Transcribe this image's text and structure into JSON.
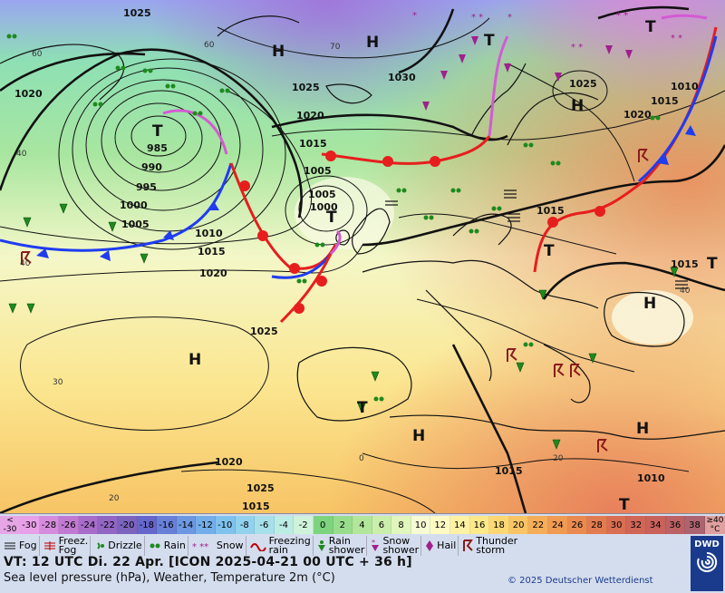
{
  "map": {
    "pressure_labels": [
      "1025",
      "1020",
      "1015",
      "1010",
      "1005",
      "1000",
      "995",
      "990",
      "985",
      "1030",
      "1025",
      "1020",
      "1015",
      "1010",
      "1005",
      "1000",
      "1015",
      "1020",
      "1025",
      "1025",
      "1020",
      "1015",
      "1010",
      "1020",
      "1015",
      "1015",
      "1010",
      "1015",
      "1025",
      "1020",
      "1015"
    ],
    "centers": [
      "T",
      "H",
      "H",
      "T",
      "T",
      "T",
      "H",
      "H",
      "T",
      "H",
      "H",
      "H",
      "T",
      "T",
      "T"
    ],
    "extra_labels": [
      "30",
      "20",
      "50",
      "60",
      "60",
      "70",
      "40",
      "40",
      "0",
      "20",
      "40",
      "20"
    ]
  },
  "legend": {
    "scale_min": "< -30",
    "scale_max": "≥40 °C",
    "temps": [
      "-30",
      "-28",
      "-26",
      "-24",
      "-22",
      "-20",
      "-18",
      "-16",
      "-14",
      "-12",
      "-10",
      "-8",
      "-6",
      "-4",
      "-2",
      "0",
      "2",
      "4",
      "6",
      "8",
      "10",
      "12",
      "14",
      "16",
      "18",
      "20",
      "22",
      "24",
      "26",
      "28",
      "30",
      "32",
      "34",
      "36",
      "38"
    ],
    "temp_colors": [
      "#e8a0e8",
      "#d58cdc",
      "#c07ad2",
      "#a86ccb",
      "#9266c4",
      "#7b63be",
      "#6666cc",
      "#6880d8",
      "#6c98e2",
      "#74aeea",
      "#80c2ee",
      "#92d2ee",
      "#a8e0ea",
      "#bcece4",
      "#cff2da",
      "#7ed47e",
      "#98dd8c",
      "#b2e69a",
      "#caefaa",
      "#e0f6bc",
      "#f6fbd4",
      "#fdfac4",
      "#fdf2a4",
      "#fde88a",
      "#fcd874",
      "#f9c564",
      "#f5ad58",
      "#f09a52",
      "#ea8a50",
      "#e27c50",
      "#d96e52",
      "#d06656",
      "#c8625a",
      "#bc6264",
      "#ac6470"
    ],
    "weather": [
      {
        "icon": "fog-icon",
        "label": "Fog"
      },
      {
        "icon": "freezing-fog-icon",
        "label": "Freez.\nFog"
      },
      {
        "icon": "drizzle-icon",
        "label": "Drizzle"
      },
      {
        "icon": "rain-icon",
        "label": "Rain"
      },
      {
        "icon": "snow-icon",
        "label": "Snow"
      },
      {
        "icon": "freezing-rain-icon",
        "label": "Freezing\nrain"
      },
      {
        "icon": "rain-shower-icon",
        "label": "Rain\nshower"
      },
      {
        "icon": "snow-shower-icon",
        "label": "Snow\nshower"
      },
      {
        "icon": "hail-icon",
        "label": "Hail"
      },
      {
        "icon": "thunderstorm-icon",
        "label": "Thunder\nstorm"
      }
    ],
    "valid_time": "VT: 12 UTC Di.  22 Apr. [ICON 2025-04-21  00 UTC + 36 h]",
    "subtitle": "Sea level pressure (hPa), Weather, Temperature 2m (°C)",
    "copyright": "© 2025 Deutscher Wetterdienst",
    "logo_text": "DWD"
  }
}
